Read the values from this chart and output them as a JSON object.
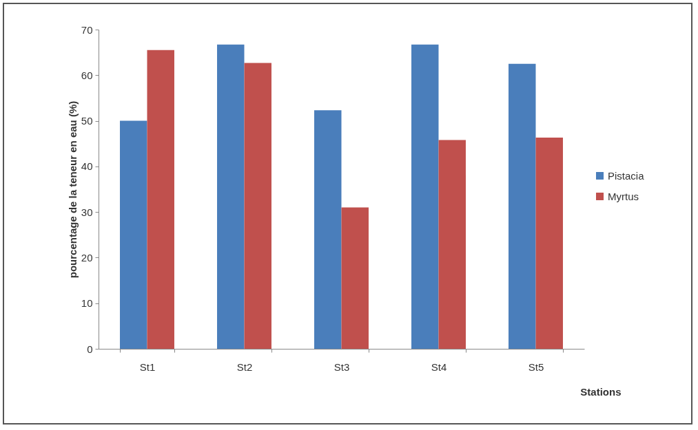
{
  "chart_data": {
    "type": "bar",
    "xlabel": "Stations",
    "ylabel": "pourcentage de la teneur en eau (%)",
    "categories": [
      "St1",
      "St2",
      "St3",
      "St4",
      "St5"
    ],
    "series": [
      {
        "name": "Pistacia",
        "color": "#4a7ebb",
        "values": [
          50.0,
          66.7,
          52.3,
          66.7,
          62.5
        ]
      },
      {
        "name": "Myrtus",
        "color": "#c0504d",
        "values": [
          65.5,
          62.7,
          31.0,
          45.8,
          46.3
        ]
      }
    ],
    "ylim": [
      0,
      70
    ],
    "yticks": [
      0,
      10,
      20,
      30,
      40,
      50,
      60,
      70
    ],
    "grid": false,
    "legend": "right"
  }
}
